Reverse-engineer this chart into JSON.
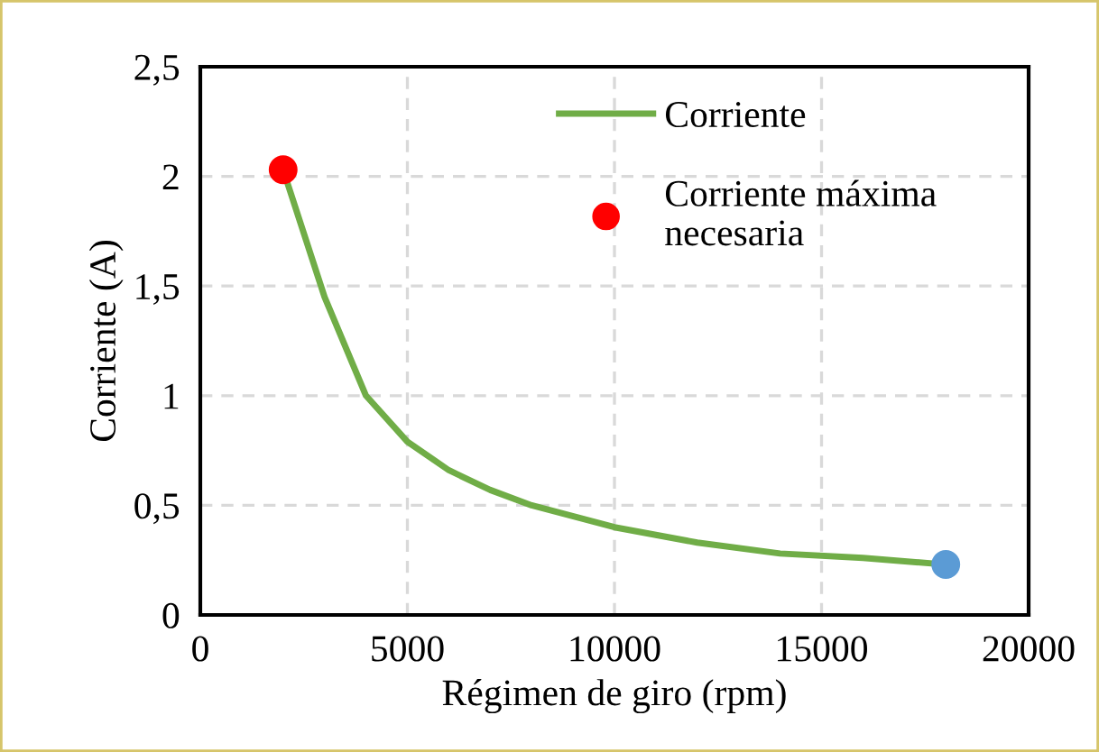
{
  "chart_data": {
    "type": "line",
    "xlabel": "Régimen de giro (rpm)",
    "ylabel": "Corriente (A)",
    "xlim": [
      0,
      20000
    ],
    "xticks": [
      0,
      5000,
      10000,
      15000,
      20000
    ],
    "ylim": [
      0,
      2.5
    ],
    "yticks": [
      0,
      {
        "value": 0.5,
        "label": "0,5"
      },
      1,
      {
        "value": 1.5,
        "label": "1,5"
      },
      2,
      {
        "value": 2.5,
        "label": "2,5"
      }
    ],
    "grid": true,
    "legend": "top right",
    "series": [
      {
        "name": "Corriente",
        "color": "#70ad47",
        "x": [
          2000,
          3000,
          4000,
          5000,
          6000,
          7000,
          8000,
          10000,
          12000,
          14000,
          16000,
          18000
        ],
        "values": [
          2.03,
          1.45,
          1.0,
          0.79,
          0.66,
          0.57,
          0.5,
          0.4,
          0.33,
          0.28,
          0.26,
          0.23
        ]
      },
      {
        "name": "Corriente máxima necesaria",
        "type": "scatter",
        "color": "#ff0000",
        "x": [
          2000
        ],
        "values": [
          2.03
        ]
      },
      {
        "type": "scatter",
        "color": "#5b9bd5",
        "x": [
          18000
        ],
        "values": [
          0.23
        ]
      }
    ]
  }
}
